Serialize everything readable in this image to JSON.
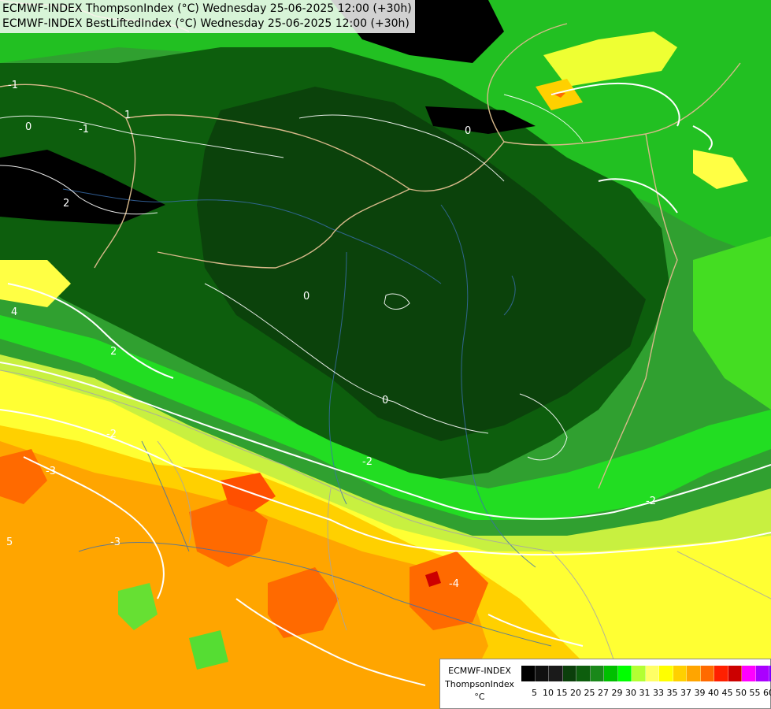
{
  "header": {
    "line1": "ECMWF-INDEX ThompsonIndex (°C) Wednesday 25-06-2025 12:00 (+30h)",
    "line2": "ECMWF-INDEX BestLiftedIndex (°C) Wednesday 25-06-2025 12:00 (+30h)"
  },
  "legend": {
    "title_line1": "ECMWF-INDEX",
    "title_line2": "ThompsonIndex",
    "title_line3": "°C",
    "ticks": [
      "5",
      "10",
      "15",
      "20",
      "25",
      "27",
      "29",
      "30",
      "31",
      "33",
      "35",
      "37",
      "39",
      "40",
      "45",
      "50",
      "55",
      "60"
    ],
    "colors": [
      "#000000",
      "#101010",
      "#1a1a1a",
      "#0b3f0b",
      "#0d5e0d",
      "#1a881a",
      "#00c000",
      "#00ff00",
      "#b3ff33",
      "#ffff66",
      "#ffff00",
      "#ffd000",
      "#ffa500",
      "#ff6a00",
      "#ff2000",
      "#cc0000",
      "#ff00ff",
      "#aa00ff",
      "#7a00ff",
      "#0000ff"
    ]
  },
  "contour_labels": [
    "-1",
    "0",
    "-1",
    "1",
    "0",
    "0",
    "2",
    "4",
    "2",
    "0",
    "-2",
    "-3",
    "-2",
    "-4",
    "-2",
    "5",
    "-3"
  ]
}
